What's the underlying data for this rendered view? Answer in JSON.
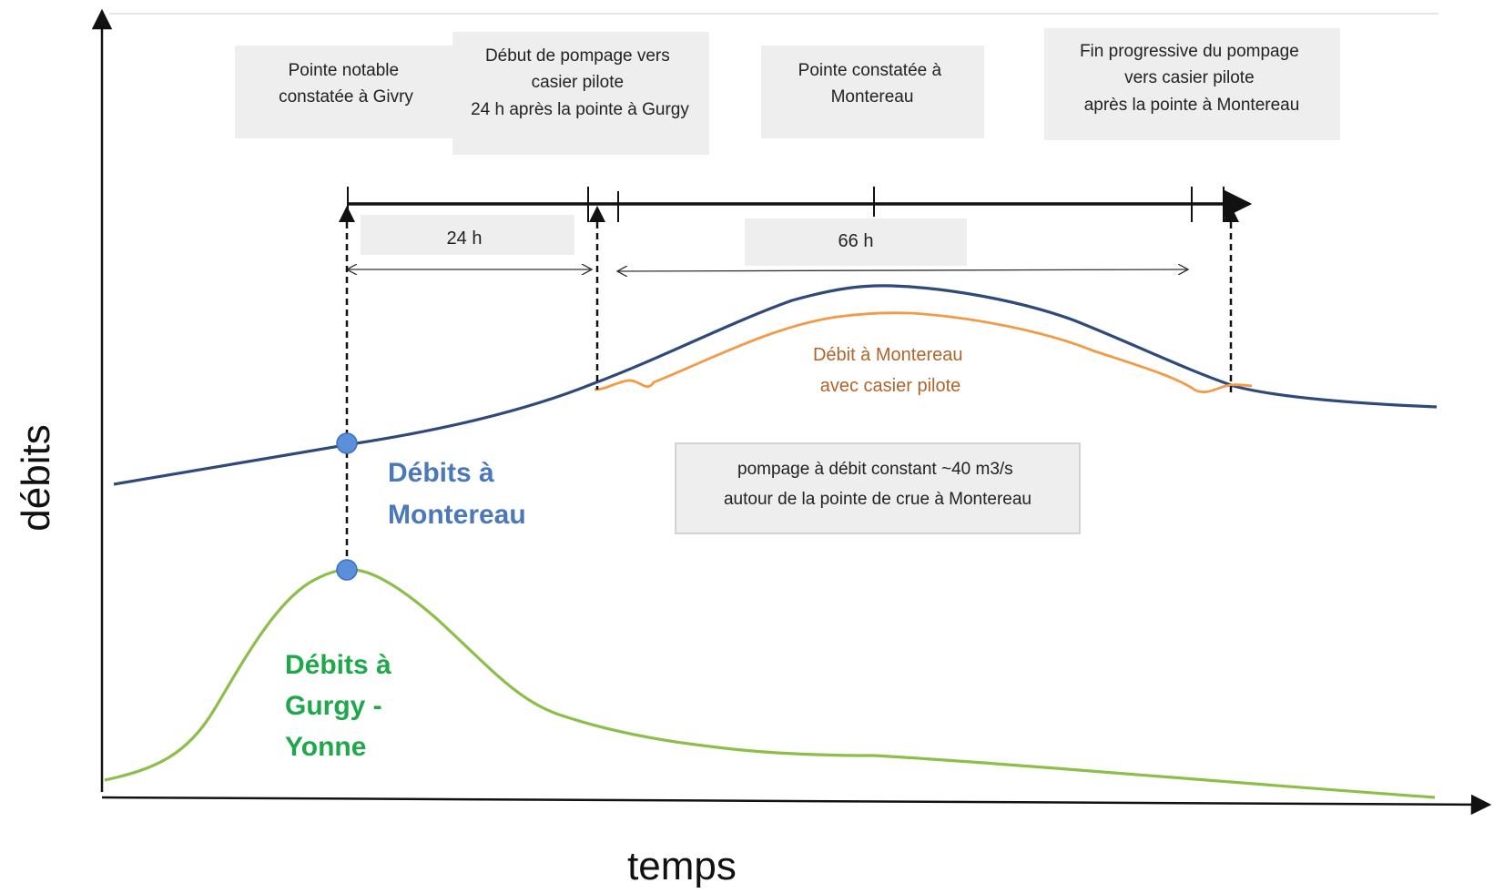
{
  "axes": {
    "y_label": "débits",
    "x_label": "temps"
  },
  "annotation_boxes": [
    {
      "lines": [
        "Pointe notable",
        "constatée à Givry"
      ]
    },
    {
      "lines": [
        "Début de pompage vers",
        "casier pilote",
        "24 h après la pointe à Gurgy"
      ]
    },
    {
      "lines": [
        "Pointe constatée à",
        "Montereau"
      ]
    },
    {
      "lines": [
        "Fin progressive du pompage",
        "vers casier pilote",
        "après la pointe à Montereau"
      ]
    }
  ],
  "durations": {
    "first": "24 h",
    "second": "66 h"
  },
  "orange_label": [
    "Débit à Montereau",
    "avec casier pilote"
  ],
  "pumping_box": [
    "pompage à débit constant ~40 m3/s",
    "autour de la pointe de crue à Montereau"
  ],
  "series_labels": {
    "montereau": [
      "Débits à",
      "Montereau"
    ],
    "gurgy": [
      "Débits à",
      "Gurgy -",
      "Yonne"
    ]
  },
  "colors": {
    "montereau_curve": "#2e4a7a",
    "gurgy_curve": "#8cbf4a",
    "orange_curve": "#f29a45",
    "montereau_text": "#4a78b8",
    "gurgy_text": "#1fa84a",
    "marker": "#5b8fd9",
    "box_fill": "#eeeeee"
  }
}
